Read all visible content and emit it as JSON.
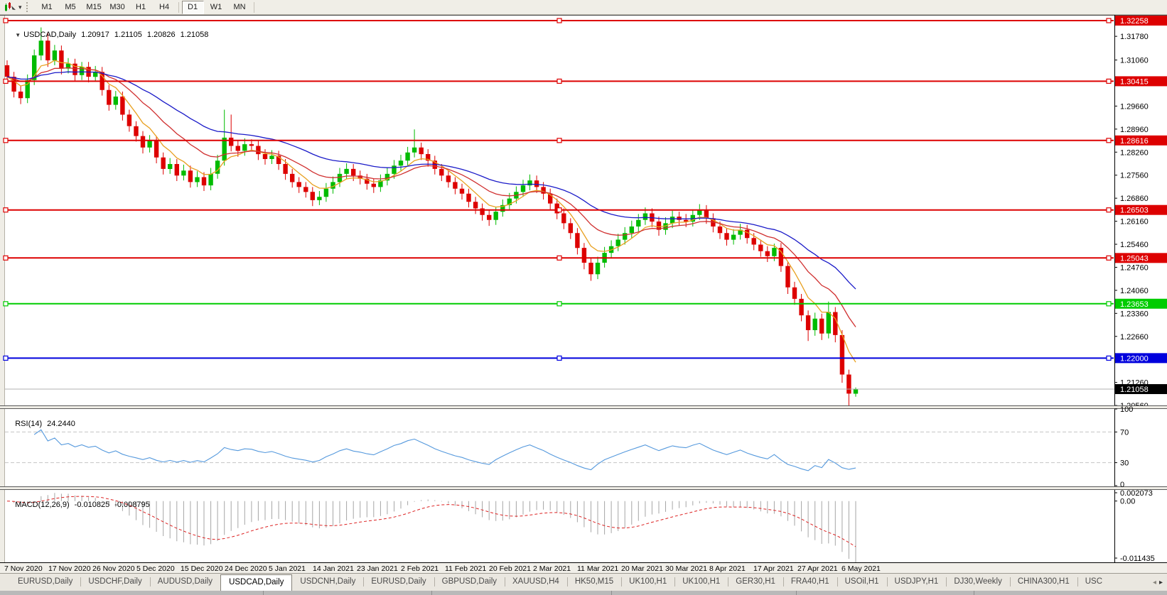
{
  "toolbar": {
    "timeframes": [
      "M1",
      "M5",
      "M15",
      "M30",
      "H1",
      "H4",
      "D1",
      "W1",
      "MN"
    ],
    "active_timeframe": "D1",
    "dropdown_icon": "▾"
  },
  "chart": {
    "collapse_icon": "▼",
    "symbol": "USDCAD,Daily",
    "quote": {
      "open": "1.20917",
      "high": "1.21105",
      "low": "1.20826",
      "close": "1.21058"
    }
  },
  "chart_data": {
    "type": "candlestick",
    "symbol": "USDCAD",
    "timeframe": "Daily",
    "up_color": "#00BB00",
    "down_color": "#DD0000",
    "x_labels": [
      "7 Nov 2020",
      "17 Nov 2020",
      "26 Nov 2020",
      "5 Dec 2020",
      "15 Dec 2020",
      "24 Dec 2020",
      "5 Jan 2021",
      "14 Jan 2021",
      "23 Jan 2021",
      "2 Feb 2021",
      "11 Feb 2021",
      "20 Feb 2021",
      "2 Mar 2021",
      "11 Mar 2021",
      "20 Mar 2021",
      "30 Mar 2021",
      "8 Apr 2021",
      "17 Apr 2021",
      "27 Apr 2021",
      "6 May 2021"
    ],
    "scale": {
      "price_at_plot_top": 1.32409,
      "price_at_plot_bottom": 1.20562
    },
    "price_ticks": [
      "1.31780",
      "1.31060",
      "1.29660",
      "1.28960",
      "1.28260",
      "1.27560",
      "1.26860",
      "1.26160",
      "1.25460",
      "1.24760",
      "1.24060",
      "1.23360",
      "1.22660",
      "1.21260",
      "1.20560"
    ],
    "price_badges": [
      {
        "value": "1.32258",
        "color": "#DD0000"
      },
      {
        "value": "1.30415",
        "color": "#DD0000"
      },
      {
        "value": "1.28616",
        "color": "#DD0000"
      },
      {
        "value": "1.26503",
        "color": "#DD0000"
      },
      {
        "value": "1.25043",
        "color": "#DD0000"
      },
      {
        "value": "1.23653",
        "color": "#00CC00"
      },
      {
        "value": "1.22000",
        "color": "#0000DD"
      },
      {
        "value": "1.21058",
        "color": "#000000"
      }
    ],
    "hlines": [
      {
        "price": 1.32258,
        "color": "#DD0000"
      },
      {
        "price": 1.30415,
        "color": "#DD0000"
      },
      {
        "price": 1.28616,
        "color": "#DD0000"
      },
      {
        "price": 1.26503,
        "color": "#DD0000"
      },
      {
        "price": 1.25043,
        "color": "#DD0000"
      },
      {
        "price": 1.23653,
        "color": "#00CC00"
      },
      {
        "price": 1.22,
        "color": "#0000DD"
      }
    ],
    "bid_line": {
      "price": 1.21058,
      "line_color": "#B0B0B0",
      "badge_color": "#000000",
      "label": "1.21058"
    },
    "moving_averages": [
      {
        "period": 6,
        "color": "#E8A020"
      },
      {
        "period": 14,
        "color": "#D03030"
      },
      {
        "period": 30,
        "color": "#1A1AC8"
      }
    ],
    "candles": [
      [
        1.309,
        1.3105,
        1.304,
        1.3055
      ],
      [
        1.3055,
        1.307,
        1.2992,
        1.301
      ],
      [
        1.301,
        1.3028,
        1.2972,
        1.299
      ],
      [
        1.299,
        1.3062,
        1.2975,
        1.3045
      ],
      [
        1.3045,
        1.3138,
        1.303,
        1.312
      ],
      [
        1.312,
        1.3205,
        1.3105,
        1.3165
      ],
      [
        1.3165,
        1.319,
        1.3085,
        1.3105
      ],
      [
        1.3105,
        1.3152,
        1.309,
        1.3135
      ],
      [
        1.3135,
        1.315,
        1.3062,
        1.308
      ],
      [
        1.308,
        1.3112,
        1.3065,
        1.3095
      ],
      [
        1.3095,
        1.311,
        1.3042,
        1.306
      ],
      [
        1.306,
        1.31,
        1.3045,
        1.3085
      ],
      [
        1.3085,
        1.31,
        1.3038,
        1.3055
      ],
      [
        1.3055,
        1.3088,
        1.304,
        1.307
      ],
      [
        1.307,
        1.3085,
        1.2998,
        1.3015
      ],
      [
        1.3015,
        1.303,
        1.2952,
        1.297
      ],
      [
        1.297,
        1.3012,
        1.2955,
        1.2995
      ],
      [
        1.2995,
        1.301,
        1.2922,
        1.294
      ],
      [
        1.294,
        1.2955,
        1.2888,
        1.2905
      ],
      [
        1.2905,
        1.292,
        1.2858,
        1.2875
      ],
      [
        1.2875,
        1.289,
        1.2822,
        1.284
      ],
      [
        1.284,
        1.2878,
        1.2825,
        1.286
      ],
      [
        1.286,
        1.2875,
        1.2792,
        1.281
      ],
      [
        1.281,
        1.2825,
        1.2758,
        1.2775
      ],
      [
        1.2775,
        1.2808,
        1.276,
        1.279
      ],
      [
        1.279,
        1.2805,
        1.2738,
        1.2755
      ],
      [
        1.2755,
        1.2788,
        1.274,
        1.277
      ],
      [
        1.277,
        1.2785,
        1.2718,
        1.2735
      ],
      [
        1.2735,
        1.2768,
        1.272,
        1.275
      ],
      [
        1.275,
        1.2765,
        1.2708,
        1.2725
      ],
      [
        1.2725,
        1.2778,
        1.271,
        1.276
      ],
      [
        1.276,
        1.2818,
        1.2745,
        1.28
      ],
      [
        1.28,
        1.2955,
        1.2785,
        1.287
      ],
      [
        1.287,
        1.294,
        1.2828,
        1.2845
      ],
      [
        1.2845,
        1.2862,
        1.2812,
        1.283
      ],
      [
        1.283,
        1.2868,
        1.2815,
        1.285
      ],
      [
        1.285,
        1.2865,
        1.2828,
        1.2845
      ],
      [
        1.2845,
        1.286,
        1.2802,
        1.282
      ],
      [
        1.282,
        1.2835,
        1.2788,
        1.2805
      ],
      [
        1.2805,
        1.2832,
        1.279,
        1.2815
      ],
      [
        1.2815,
        1.283,
        1.2772,
        1.279
      ],
      [
        1.279,
        1.2805,
        1.2742,
        1.276
      ],
      [
        1.276,
        1.2775,
        1.2718,
        1.2735
      ],
      [
        1.2735,
        1.275,
        1.2702,
        1.272
      ],
      [
        1.272,
        1.2735,
        1.2688,
        1.2705
      ],
      [
        1.2705,
        1.272,
        1.2662,
        1.268
      ],
      [
        1.268,
        1.2708,
        1.2665,
        1.269
      ],
      [
        1.269,
        1.2732,
        1.2675,
        1.2715
      ],
      [
        1.2715,
        1.2752,
        1.27,
        1.2735
      ],
      [
        1.2735,
        1.2778,
        1.272,
        1.276
      ],
      [
        1.276,
        1.2792,
        1.2745,
        1.2775
      ],
      [
        1.2775,
        1.279,
        1.2738,
        1.2755
      ],
      [
        1.2755,
        1.277,
        1.2728,
        1.2745
      ],
      [
        1.2745,
        1.276,
        1.2712,
        1.273
      ],
      [
        1.273,
        1.2745,
        1.2702,
        1.272
      ],
      [
        1.272,
        1.2758,
        1.2705,
        1.274
      ],
      [
        1.274,
        1.2778,
        1.2725,
        1.276
      ],
      [
        1.276,
        1.2802,
        1.2745,
        1.2785
      ],
      [
        1.2785,
        1.2818,
        1.277,
        1.28
      ],
      [
        1.28,
        1.2842,
        1.2785,
        1.2825
      ],
      [
        1.2825,
        1.2895,
        1.281,
        1.284
      ],
      [
        1.284,
        1.2855,
        1.2802,
        1.282
      ],
      [
        1.282,
        1.2835,
        1.2782,
        1.28
      ],
      [
        1.28,
        1.2815,
        1.2758,
        1.2775
      ],
      [
        1.2775,
        1.279,
        1.2738,
        1.2755
      ],
      [
        1.2755,
        1.277,
        1.2718,
        1.2735
      ],
      [
        1.2735,
        1.275,
        1.2698,
        1.2715
      ],
      [
        1.2715,
        1.273,
        1.2682,
        1.27
      ],
      [
        1.27,
        1.2715,
        1.2658,
        1.2675
      ],
      [
        1.2675,
        1.269,
        1.2638,
        1.2655
      ],
      [
        1.2655,
        1.267,
        1.2618,
        1.2635
      ],
      [
        1.2635,
        1.265,
        1.2602,
        1.262
      ],
      [
        1.262,
        1.2658,
        1.2605,
        1.2645
      ],
      [
        1.2645,
        1.2682,
        1.263,
        1.2665
      ],
      [
        1.2665,
        1.2702,
        1.265,
        1.2685
      ],
      [
        1.2685,
        1.2722,
        1.267,
        1.2705
      ],
      [
        1.2705,
        1.2742,
        1.269,
        1.2725
      ],
      [
        1.2725,
        1.2758,
        1.271,
        1.274
      ],
      [
        1.274,
        1.2755,
        1.2702,
        1.272
      ],
      [
        1.272,
        1.2735,
        1.2682,
        1.27
      ],
      [
        1.27,
        1.2715,
        1.2652,
        1.267
      ],
      [
        1.267,
        1.2685,
        1.2622,
        1.264
      ],
      [
        1.264,
        1.2655,
        1.2592,
        1.261
      ],
      [
        1.261,
        1.2625,
        1.2562,
        1.258
      ],
      [
        1.258,
        1.2595,
        1.2515,
        1.2535
      ],
      [
        1.2535,
        1.255,
        1.247,
        1.249
      ],
      [
        1.249,
        1.2505,
        1.2435,
        1.2455
      ],
      [
        1.2455,
        1.2508,
        1.244,
        1.249
      ],
      [
        1.249,
        1.2538,
        1.2475,
        1.252
      ],
      [
        1.252,
        1.2558,
        1.2505,
        1.254
      ],
      [
        1.254,
        1.2578,
        1.2525,
        1.256
      ],
      [
        1.256,
        1.2598,
        1.2545,
        1.258
      ],
      [
        1.258,
        1.2618,
        1.2565,
        1.26
      ],
      [
        1.26,
        1.2638,
        1.2585,
        1.262
      ],
      [
        1.262,
        1.2658,
        1.2605,
        1.264
      ],
      [
        1.264,
        1.2655,
        1.2598,
        1.2615
      ],
      [
        1.2615,
        1.263,
        1.2572,
        1.259
      ],
      [
        1.259,
        1.2628,
        1.2575,
        1.261
      ],
      [
        1.261,
        1.2648,
        1.2595,
        1.263
      ],
      [
        1.263,
        1.2645,
        1.2602,
        1.262
      ],
      [
        1.262,
        1.2638,
        1.2598,
        1.2615
      ],
      [
        1.2615,
        1.2652,
        1.26,
        1.2635
      ],
      [
        1.2635,
        1.2668,
        1.262,
        1.265
      ],
      [
        1.265,
        1.2665,
        1.2608,
        1.2625
      ],
      [
        1.2625,
        1.264,
        1.2582,
        1.26
      ],
      [
        1.26,
        1.2615,
        1.2562,
        1.258
      ],
      [
        1.258,
        1.2595,
        1.2542,
        1.256
      ],
      [
        1.256,
        1.2592,
        1.2545,
        1.2575
      ],
      [
        1.2575,
        1.2608,
        1.256,
        1.259
      ],
      [
        1.259,
        1.2605,
        1.2548,
        1.2565
      ],
      [
        1.2565,
        1.258,
        1.2528,
        1.2545
      ],
      [
        1.2545,
        1.256,
        1.2508,
        1.2525
      ],
      [
        1.2525,
        1.254,
        1.2492,
        1.251
      ],
      [
        1.251,
        1.2548,
        1.2495,
        1.2535
      ],
      [
        1.2535,
        1.255,
        1.2462,
        1.248
      ],
      [
        1.248,
        1.2495,
        1.2395,
        1.2415
      ],
      [
        1.2415,
        1.2432,
        1.2362,
        1.238
      ],
      [
        1.238,
        1.2395,
        1.2312,
        1.233
      ],
      [
        1.233,
        1.2345,
        1.2252,
        1.2285
      ],
      [
        1.2285,
        1.2338,
        1.2268,
        1.232
      ],
      [
        1.232,
        1.2335,
        1.2255,
        1.2275
      ],
      [
        1.2275,
        1.2372,
        1.226,
        1.234
      ],
      [
        1.234,
        1.2355,
        1.2248,
        1.227
      ],
      [
        1.227,
        1.2285,
        1.2125,
        1.215
      ],
      [
        1.215,
        1.2165,
        1.2056,
        1.2092
      ],
      [
        1.20917,
        1.21105,
        1.20826,
        1.21058
      ]
    ]
  },
  "rsi": {
    "label": "RSI(14)",
    "value": "24.2440",
    "period": 14,
    "levels": [
      70,
      30
    ],
    "axis_labels": [
      "100",
      "70",
      "30",
      "0"
    ],
    "line_color": "#5599DD",
    "level_color": "#C4C4C4"
  },
  "macd": {
    "label": "MACD(12,26,9)",
    "macd_value": "-0.010825",
    "signal_value": "-0.008795",
    "fast": 12,
    "slow": 26,
    "signal": 9,
    "axis_max": "0.002073",
    "axis_zero": "0.00",
    "axis_min": "-0.011435",
    "hist_color": "#A6A6A6",
    "signal_color": "#DD2222"
  },
  "tabs": {
    "items": [
      {
        "label": "EURUSD,Daily"
      },
      {
        "label": "USDCHF,Daily"
      },
      {
        "label": "AUDUSD,Daily"
      },
      {
        "label": "USDCAD,Daily",
        "active": true
      },
      {
        "label": "USDCNH,Daily"
      },
      {
        "label": "EURUSD,Daily"
      },
      {
        "label": "GBPUSD,Daily"
      },
      {
        "label": "XAUUSD,H4"
      },
      {
        "label": "HK50,M15"
      },
      {
        "label": "UK100,H1"
      },
      {
        "label": "UK100,H1"
      },
      {
        "label": "GER30,H1"
      },
      {
        "label": "FRA40,H1"
      },
      {
        "label": "USOil,H1"
      },
      {
        "label": "USDJPY,H1"
      },
      {
        "label": "DJ30,Weekly"
      },
      {
        "label": "CHINA300,H1"
      },
      {
        "label": "USC"
      }
    ],
    "scroll_left_icon": "◂",
    "scroll_right_icon": "▸"
  }
}
